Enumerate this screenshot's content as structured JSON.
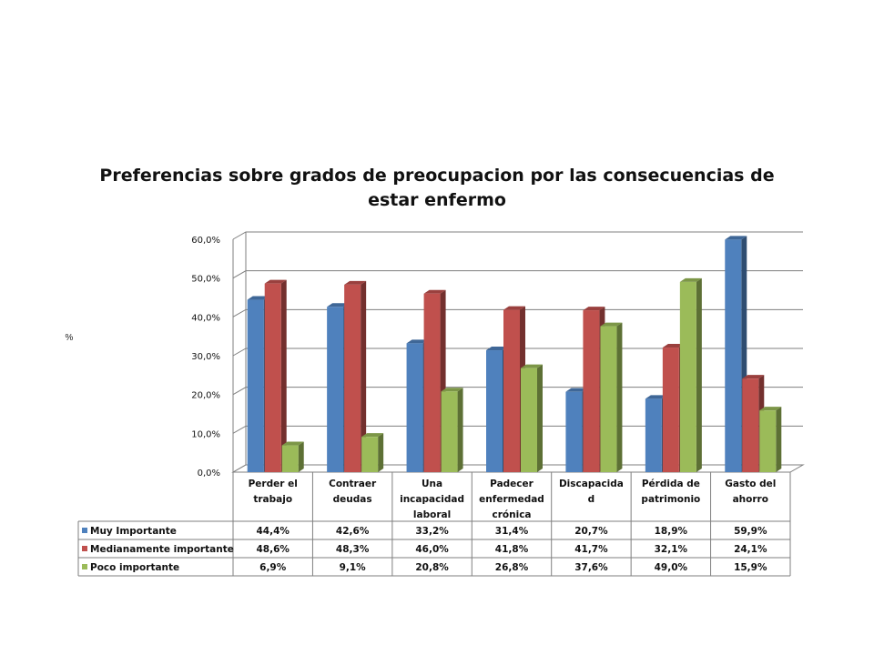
{
  "chart_data": {
    "type": "bar",
    "title_lines": [
      "Preferencias sobre grados de preocupacion por las consecuencias de",
      "estar enfermo"
    ],
    "ylabel": "%",
    "ylim": [
      0,
      60
    ],
    "ytick_labels": [
      "0,0%",
      "10,0%",
      "20,0%",
      "30,0%",
      "40,0%",
      "50,0%",
      "60,0%"
    ],
    "grid": true,
    "categories": [
      [
        "Perder el",
        "trabajo"
      ],
      [
        "Contraer",
        "deudas"
      ],
      [
        "Una",
        "incapacidad",
        "laboral"
      ],
      [
        "Padecer",
        "enfermedad",
        "crónica"
      ],
      [
        "Discapacida",
        "d"
      ],
      [
        "Pérdida de",
        "patrimonio"
      ],
      [
        "Gasto del",
        "ahorro"
      ]
    ],
    "series": [
      {
        "name": "Muy Importante",
        "color": "#4F81BD",
        "values": [
          44.4,
          42.6,
          33.2,
          31.4,
          20.7,
          18.9,
          59.9
        ],
        "labels": [
          "44,4%",
          "42,6%",
          "33,2%",
          "31,4%",
          "20,7%",
          "18,9%",
          "59,9%"
        ]
      },
      {
        "name": "Medianamente importante",
        "color": "#C0504D",
        "values": [
          48.6,
          48.3,
          46.0,
          41.8,
          41.7,
          32.1,
          24.1
        ],
        "labels": [
          "48,6%",
          "48,3%",
          "46,0%",
          "41,8%",
          "41,7%",
          "32,1%",
          "24,1%"
        ]
      },
      {
        "name": "Poco importante",
        "color": "#9BBB59",
        "values": [
          6.9,
          9.1,
          20.8,
          26.8,
          37.6,
          49.0,
          15.9
        ],
        "labels": [
          "6,9%",
          "9,1%",
          "20,8%",
          "26,8%",
          "37,6%",
          "49,0%",
          "15,9%"
        ]
      }
    ]
  }
}
